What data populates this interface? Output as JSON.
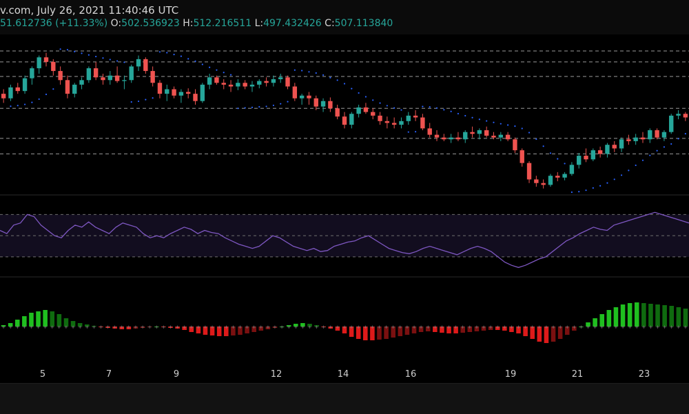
{
  "header": {
    "source_date": "v.com, July 26, 2021 11:40:46 UTC",
    "change": "51.612736 (+11.33%)",
    "open_label": "O:",
    "open": "502.536923",
    "high_label": "H:",
    "high": "512.216511",
    "low_label": "L:",
    "low": "497.432426",
    "close_label": "C:",
    "close": "507.113840"
  },
  "colors": {
    "up": "#26a69a",
    "down": "#ef5350",
    "rsi_line": "#7e57c2",
    "sar": "#2962ff",
    "hist_up": "#22ab22",
    "hist_down": "#cc1111"
  },
  "chart_data": {
    "type": "candlestick",
    "x_tick_labels": [
      "5",
      "7",
      "9",
      "12",
      "14",
      "16",
      "19",
      "21",
      "23"
    ],
    "candles": [
      [
        500,
        505,
        490,
        495
      ],
      [
        495,
        510,
        492,
        507
      ],
      [
        507,
        512,
        500,
        503
      ],
      [
        503,
        520,
        500,
        517
      ],
      [
        517,
        530,
        510,
        528
      ],
      [
        528,
        542,
        522,
        540
      ],
      [
        540,
        545,
        530,
        535
      ],
      [
        535,
        538,
        520,
        525
      ],
      [
        525,
        530,
        510,
        515
      ],
      [
        515,
        520,
        495,
        500
      ],
      [
        500,
        512,
        496,
        510
      ],
      [
        510,
        518,
        505,
        515
      ],
      [
        515,
        530,
        512,
        528
      ],
      [
        528,
        535,
        515,
        518
      ],
      [
        518,
        522,
        510,
        515
      ],
      [
        515,
        525,
        510,
        520
      ],
      [
        520,
        530,
        512,
        514
      ],
      [
        514,
        520,
        505,
        515
      ],
      [
        515,
        532,
        512,
        530
      ],
      [
        530,
        542,
        525,
        538
      ],
      [
        538,
        540,
        522,
        525
      ],
      [
        525,
        530,
        508,
        512
      ],
      [
        512,
        515,
        495,
        500
      ],
      [
        500,
        510,
        492,
        505
      ],
      [
        505,
        508,
        495,
        498
      ],
      [
        498,
        505,
        490,
        502
      ],
      [
        502,
        506,
        495,
        500
      ],
      [
        500,
        505,
        488,
        492
      ],
      [
        492,
        512,
        490,
        510
      ],
      [
        510,
        522,
        505,
        518
      ],
      [
        518,
        520,
        510,
        512
      ],
      [
        512,
        516,
        505,
        510
      ],
      [
        510,
        515,
        502,
        508
      ],
      [
        508,
        516,
        504,
        512
      ],
      [
        512,
        515,
        505,
        508
      ],
      [
        508,
        514,
        502,
        510
      ],
      [
        510,
        516,
        506,
        514
      ],
      [
        514,
        518,
        508,
        512
      ],
      [
        512,
        520,
        508,
        516
      ],
      [
        516,
        522,
        512,
        518
      ],
      [
        518,
        520,
        505,
        508
      ],
      [
        508,
        512,
        492,
        495
      ],
      [
        495,
        500,
        488,
        498
      ],
      [
        498,
        502,
        488,
        495
      ],
      [
        495,
        498,
        482,
        486
      ],
      [
        486,
        495,
        480,
        492
      ],
      [
        492,
        496,
        480,
        484
      ],
      [
        484,
        488,
        472,
        475
      ],
      [
        475,
        480,
        462,
        466
      ],
      [
        466,
        480,
        462,
        478
      ],
      [
        478,
        488,
        474,
        485
      ],
      [
        485,
        490,
        478,
        480
      ],
      [
        480,
        484,
        472,
        476
      ],
      [
        476,
        480,
        466,
        470
      ],
      [
        470,
        475,
        462,
        468
      ],
      [
        468,
        474,
        462,
        466
      ],
      [
        466,
        474,
        462,
        470
      ],
      [
        470,
        480,
        466,
        476
      ],
      [
        476,
        482,
        470,
        474
      ],
      [
        474,
        478,
        460,
        462
      ],
      [
        462,
        468,
        452,
        455
      ],
      [
        455,
        460,
        448,
        452
      ],
      [
        452,
        456,
        448,
        450
      ],
      [
        450,
        456,
        446,
        452
      ],
      [
        452,
        458,
        448,
        450
      ],
      [
        450,
        460,
        446,
        458
      ],
      [
        458,
        464,
        452,
        456
      ],
      [
        456,
        462,
        450,
        460
      ],
      [
        460,
        464,
        452,
        454
      ],
      [
        454,
        458,
        450,
        452
      ],
      [
        452,
        458,
        448,
        455
      ],
      [
        455,
        458,
        448,
        450
      ],
      [
        450,
        452,
        435,
        438
      ],
      [
        438,
        440,
        420,
        424
      ],
      [
        424,
        426,
        402,
        406
      ],
      [
        406,
        410,
        398,
        402
      ],
      [
        402,
        406,
        396,
        400
      ],
      [
        400,
        412,
        398,
        410
      ],
      [
        410,
        414,
        404,
        408
      ],
      [
        408,
        414,
        405,
        412
      ],
      [
        412,
        425,
        410,
        422
      ],
      [
        422,
        435,
        418,
        432
      ],
      [
        432,
        440,
        425,
        428
      ],
      [
        428,
        440,
        426,
        438
      ],
      [
        438,
        442,
        430,
        434
      ],
      [
        434,
        446,
        430,
        444
      ],
      [
        444,
        448,
        436,
        440
      ],
      [
        440,
        452,
        436,
        450
      ],
      [
        450,
        455,
        444,
        448
      ],
      [
        448,
        456,
        444,
        452
      ],
      [
        452,
        458,
        446,
        450
      ],
      [
        450,
        462,
        446,
        460
      ],
      [
        460,
        462,
        450,
        452
      ],
      [
        452,
        460,
        448,
        458
      ],
      [
        458,
        478,
        456,
        476
      ],
      [
        476,
        482,
        472,
        478
      ],
      [
        478,
        480,
        470,
        474
      ]
    ],
    "price_levels": [
      547,
      535,
      519,
      484,
      451,
      434
    ],
    "rsi": {
      "levels": [
        70,
        50,
        30
      ],
      "values": [
        55,
        52,
        60,
        62,
        70,
        68,
        60,
        55,
        50,
        48,
        55,
        60,
        58,
        63,
        58,
        55,
        52,
        58,
        62,
        60,
        58,
        52,
        48,
        50,
        48,
        52,
        55,
        58,
        56,
        52,
        55,
        53,
        52,
        48,
        45,
        42,
        40,
        38,
        40,
        45,
        50,
        48,
        44,
        40,
        38,
        36,
        38,
        35,
        36,
        40,
        42,
        44,
        45,
        48,
        50,
        46,
        42,
        38,
        36,
        34,
        33,
        35,
        38,
        40,
        38,
        36,
        34,
        32,
        35,
        38,
        40,
        38,
        35,
        30,
        25,
        22,
        20,
        22,
        25,
        28,
        30,
        35,
        40,
        45,
        48,
        52,
        55,
        58,
        56,
        55,
        60,
        62,
        64,
        66,
        68,
        70,
        72,
        70,
        68,
        66,
        64,
        62
      ]
    },
    "histogram": [
      2,
      5,
      10,
      15,
      20,
      22,
      24,
      22,
      18,
      12,
      8,
      5,
      3,
      1,
      -1,
      -2,
      -3,
      -4,
      -4,
      -3,
      -2,
      -1,
      0,
      -1,
      -2,
      -3,
      -5,
      -8,
      -10,
      -12,
      -13,
      -14,
      -14,
      -13,
      -12,
      -10,
      -8,
      -6,
      -4,
      -2,
      0,
      2,
      4,
      5,
      4,
      2,
      -1,
      -3,
      -6,
      -10,
      -15,
      -18,
      -20,
      -20,
      -19,
      -18,
      -16,
      -14,
      -12,
      -10,
      -8,
      -7,
      -8,
      -9,
      -10,
      -10,
      -9,
      -8,
      -7,
      -6,
      -5,
      -5,
      -6,
      -8,
      -10,
      -14,
      -18,
      -22,
      -24,
      -22,
      -18,
      -12,
      -6,
      0,
      6,
      12,
      18,
      24,
      28,
      32,
      34,
      35,
      34,
      33,
      32,
      31,
      30,
      28,
      26
    ]
  },
  "footer": {}
}
